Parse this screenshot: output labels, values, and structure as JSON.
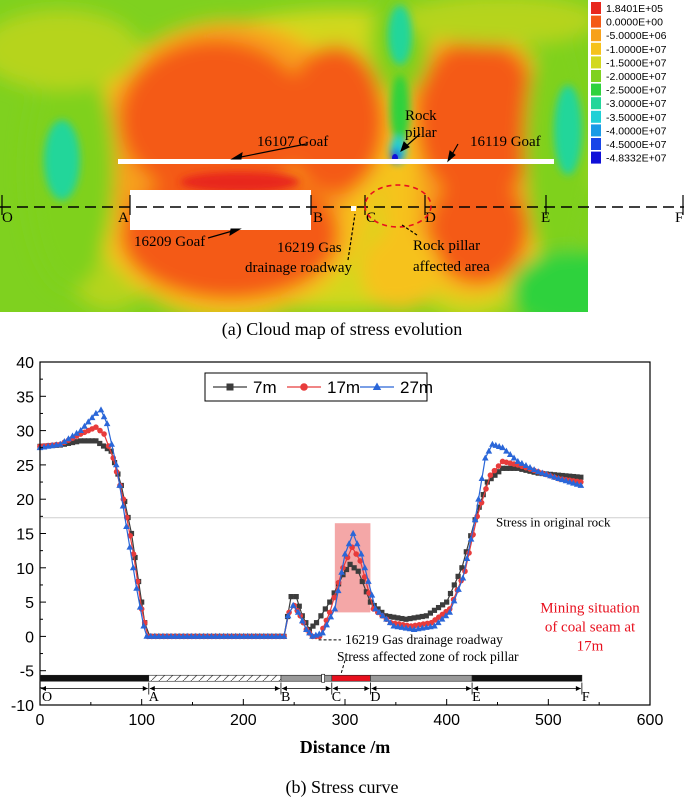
{
  "panel_a": {
    "caption": "(a) Cloud map of stress evolution",
    "labels": {
      "goaf_16107": "16107 Goaf",
      "goaf_16119": "16119 Goaf",
      "goaf_16209": "16209 Goaf",
      "rock_pillar_line1": "Rock",
      "rock_pillar_line2": "pillar",
      "gas_line1": "16219 Gas",
      "gas_line2": "drainage roadway",
      "affected_line1": "Rock pillar",
      "affected_line2": "affected area"
    },
    "points": [
      "O",
      "A",
      "B",
      "C",
      "D",
      "E",
      "F"
    ],
    "legend": [
      {
        "value": "1.8401E+05",
        "color": "#e8281e"
      },
      {
        "value": "0.0000E+00",
        "color": "#f45a16"
      },
      {
        "value": "-5.0000E+06",
        "color": "#f7a11b"
      },
      {
        "value": "-1.0000E+07",
        "color": "#f6c21c"
      },
      {
        "value": "-1.5000E+07",
        "color": "#d2d81e"
      },
      {
        "value": "-2.0000E+07",
        "color": "#7fd11f"
      },
      {
        "value": "-2.5000E+07",
        "color": "#2fd23d"
      },
      {
        "value": "-3.0000E+07",
        "color": "#22d69a"
      },
      {
        "value": "-3.5000E+07",
        "color": "#1fd0d6"
      },
      {
        "value": "-4.0000E+07",
        "color": "#1a9be6"
      },
      {
        "value": "-4.5000E+07",
        "color": "#1845e8"
      },
      {
        "value": "-4.8332E+07",
        "color": "#1010d8"
      }
    ]
  },
  "chart_data": {
    "type": "line",
    "caption": "(b) Stress curve",
    "xlabel": "Distance /m",
    "ylabel": "",
    "xlim": [
      0,
      600
    ],
    "ylim": [
      -10,
      40
    ],
    "x_ticks": [
      0,
      100,
      200,
      300,
      400,
      500,
      600
    ],
    "y_ticks": [
      -10,
      -5,
      0,
      5,
      10,
      15,
      20,
      25,
      30,
      35,
      40
    ],
    "legend_position": "top-center",
    "series": [
      {
        "name": "7m",
        "color": "#3c3c3c",
        "marker": "square",
        "points": [
          [
            0,
            27.7
          ],
          [
            20,
            27.9
          ],
          [
            40,
            28.5
          ],
          [
            55,
            28.5
          ],
          [
            70,
            27.0
          ],
          [
            80,
            22.0
          ],
          [
            90,
            15.0
          ],
          [
            97,
            8.0
          ],
          [
            103,
            2.0
          ],
          [
            108,
            0
          ],
          [
            240,
            0
          ],
          [
            247,
            5.8
          ],
          [
            252,
            5.8
          ],
          [
            258,
            3.0
          ],
          [
            265,
            1.0
          ],
          [
            272,
            2.0
          ],
          [
            285,
            5.0
          ],
          [
            298,
            9.0
          ],
          [
            305,
            10.5
          ],
          [
            313,
            9.5
          ],
          [
            325,
            5.0
          ],
          [
            340,
            3.0
          ],
          [
            360,
            2.5
          ],
          [
            380,
            3.0
          ],
          [
            400,
            5.0
          ],
          [
            415,
            10.0
          ],
          [
            428,
            17.0
          ],
          [
            440,
            22.5
          ],
          [
            455,
            24.5
          ],
          [
            470,
            24.5
          ],
          [
            490,
            23.8
          ],
          [
            510,
            23.5
          ],
          [
            532,
            23.2
          ]
        ]
      },
      {
        "name": "17m",
        "color": "#e83c3c",
        "marker": "circle",
        "points": [
          [
            0,
            27.7
          ],
          [
            20,
            28.0
          ],
          [
            40,
            29.5
          ],
          [
            55,
            30.5
          ],
          [
            63,
            29.5
          ],
          [
            72,
            26.0
          ],
          [
            82,
            20.0
          ],
          [
            92,
            12.0
          ],
          [
            100,
            4.0
          ],
          [
            106,
            0
          ],
          [
            240,
            0
          ],
          [
            245,
            3.5
          ],
          [
            250,
            4.5
          ],
          [
            256,
            3.0
          ],
          [
            262,
            1.0
          ],
          [
            268,
            0
          ],
          [
            275,
            0
          ],
          [
            285,
            3.5
          ],
          [
            298,
            10.0
          ],
          [
            307,
            13.0
          ],
          [
            315,
            11.0
          ],
          [
            328,
            4.0
          ],
          [
            345,
            2.0
          ],
          [
            365,
            1.5
          ],
          [
            385,
            2.0
          ],
          [
            403,
            4.0
          ],
          [
            418,
            9.5
          ],
          [
            430,
            17.5
          ],
          [
            443,
            23.5
          ],
          [
            455,
            25.5
          ],
          [
            470,
            25.0
          ],
          [
            490,
            24.0
          ],
          [
            510,
            23.0
          ],
          [
            532,
            22.5
          ]
        ]
      },
      {
        "name": "27m",
        "color": "#2a66d8",
        "marker": "triangle",
        "points": [
          [
            0,
            27.5
          ],
          [
            20,
            28.0
          ],
          [
            40,
            30.0
          ],
          [
            55,
            32.5
          ],
          [
            60,
            33.0
          ],
          [
            66,
            31.0
          ],
          [
            75,
            25.0
          ],
          [
            85,
            16.0
          ],
          [
            95,
            7.0
          ],
          [
            102,
            1.5
          ],
          [
            105,
            0
          ],
          [
            240,
            0
          ],
          [
            244,
            3.0
          ],
          [
            249,
            4.5
          ],
          [
            254,
            3.5
          ],
          [
            262,
            1.0
          ],
          [
            268,
            0
          ],
          [
            278,
            0.5
          ],
          [
            290,
            4.0
          ],
          [
            300,
            12.0
          ],
          [
            308,
            15.0
          ],
          [
            316,
            12.0
          ],
          [
            330,
            4.0
          ],
          [
            348,
            1.5
          ],
          [
            368,
            1.0
          ],
          [
            388,
            1.5
          ],
          [
            403,
            3.5
          ],
          [
            416,
            8.5
          ],
          [
            428,
            17.0
          ],
          [
            438,
            26.0
          ],
          [
            445,
            28.0
          ],
          [
            455,
            27.5
          ],
          [
            470,
            25.5
          ],
          [
            490,
            24.0
          ],
          [
            510,
            23.0
          ],
          [
            532,
            22.0
          ]
        ]
      }
    ],
    "annotations": {
      "original_stress_label": "Stress in original rock",
      "original_stress_value": 17.3,
      "gas_roadway_label": "16219 Gas drainage roadway",
      "pillar_zone_label": "Stress affected zone of rock pillar",
      "mining_line1": "Mining situation",
      "mining_line2": "of coal seam at",
      "mining_line3": "17m",
      "highlight_range_x": [
        290,
        325
      ],
      "highlight_range_y": [
        3.5,
        16.5
      ]
    },
    "segment_points": [
      {
        "name": "O",
        "x": 0
      },
      {
        "name": "A",
        "x": 107
      },
      {
        "name": "B",
        "x": 237
      },
      {
        "name": "C",
        "x": 287
      },
      {
        "name": "D",
        "x": 325
      },
      {
        "name": "E",
        "x": 425
      },
      {
        "name": "F",
        "x": 533
      }
    ]
  }
}
